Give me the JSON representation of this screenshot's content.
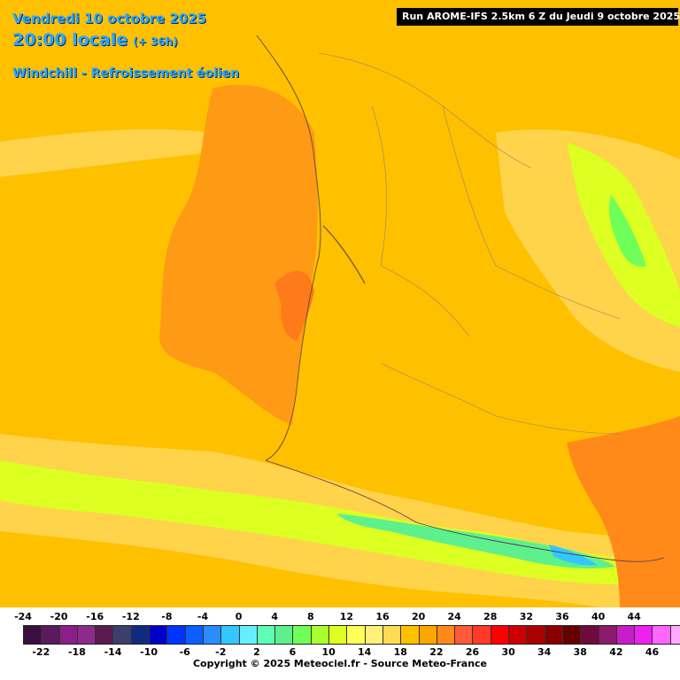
{
  "header": {
    "date_line": "Vendredi 10 octobre 2025",
    "time_line": "20:00 locale",
    "offset": "(+ 36h)",
    "parameter": "Windchill - Refroissement éolien",
    "run_info": "Run AROME-IFS 2.5km 6 Z du Jeudi 9 octobre 2025"
  },
  "legend": {
    "top_labels": [
      "-24",
      "-20",
      "-16",
      "-12",
      "-8",
      "-4",
      "0",
      "4",
      "8",
      "12",
      "16",
      "20",
      "24",
      "28",
      "32",
      "36",
      "40",
      "44"
    ],
    "bottom_labels": [
      "-22",
      "-18",
      "-14",
      "-10",
      "-6",
      "-2",
      "2",
      "6",
      "10",
      "14",
      "18",
      "22",
      "26",
      "30",
      "34",
      "38",
      "42",
      "46"
    ],
    "colors": [
      "#3a0e3d",
      "#5a1a5e",
      "#8a1e8a",
      "#8d2b8d",
      "#5b1a4d",
      "#3d3d6e",
      "#102a80",
      "#0000c8",
      "#0033ff",
      "#0b5fff",
      "#2a8cff",
      "#33c6ff",
      "#66eeff",
      "#5effb4",
      "#5ef08c",
      "#6fff58",
      "#a8ff2e",
      "#ddff22",
      "#ffff55",
      "#fff07a",
      "#ffdc55",
      "#ffc000",
      "#ffa500",
      "#ff8a1a",
      "#ff5a3a",
      "#ff3a28",
      "#ff0000",
      "#cc0000",
      "#aa0000",
      "#880000",
      "#660000",
      "#6e0a3c",
      "#8b1a6e",
      "#c61ec6",
      "#ee22ee",
      "#ff66ff",
      "#ffaaff"
    ]
  },
  "copyright": "Copyright © 2025 Meteociel.fr - Source Meteo-France"
}
